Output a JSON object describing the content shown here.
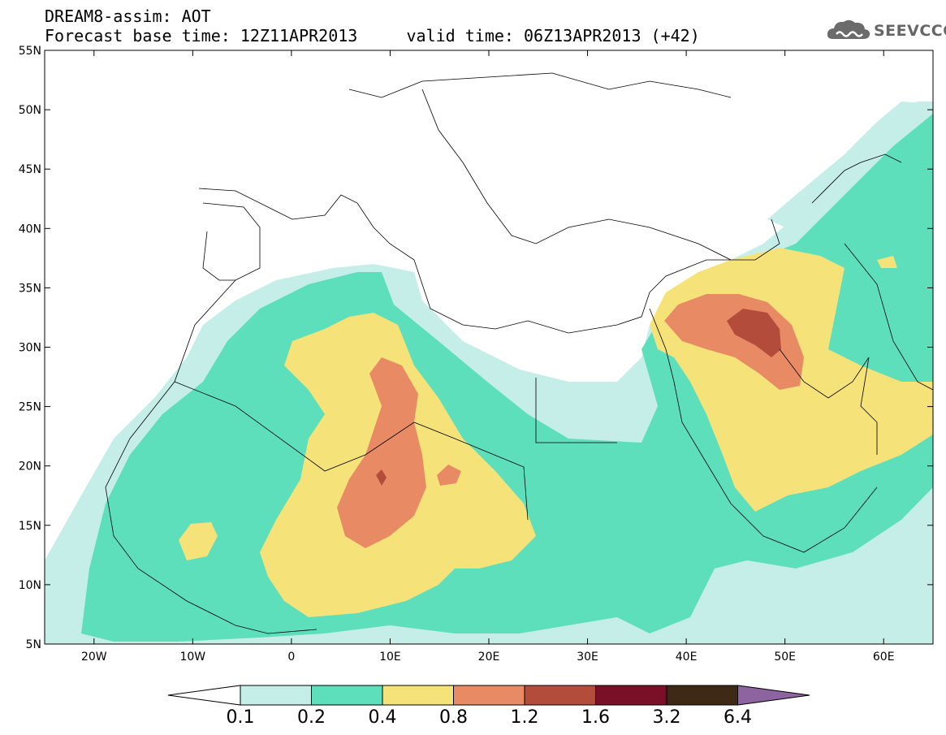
{
  "title_line1": "DREAM8-assim: AOT",
  "title_line2": "Forecast base time: 12Z11APR2013     valid time: 06Z13APR2013 (+42)",
  "logo": {
    "text": "SEEVCCC",
    "icon": "cloud-icon"
  },
  "map": {
    "variable": "AOT",
    "lon_range": [
      -25,
      65
    ],
    "lat_range": [
      5,
      55
    ],
    "lat_ticks": [
      "5N",
      "10N",
      "15N",
      "20N",
      "25N",
      "30N",
      "35N",
      "40N",
      "45N",
      "50N",
      "55N"
    ],
    "lon_ticks": [
      "20W",
      "10W",
      "0",
      "10E",
      "20E",
      "30E",
      "40E",
      "50E",
      "60E"
    ]
  },
  "colorbar": {
    "levels": [
      "0.1",
      "0.2",
      "0.4",
      "0.8",
      "1.2",
      "1.6",
      "3.2",
      "6.4"
    ],
    "colors": [
      "#ffffff",
      "#c6eee8",
      "#5ddfbc",
      "#f5e37a",
      "#e88b64",
      "#b44c3c",
      "#7a1028",
      "#3e2816",
      "#8e64a0"
    ]
  },
  "colors": {
    "c0": "#c6eee8",
    "c1": "#5ddfbc",
    "c2": "#f5e37a",
    "c3": "#e88b64",
    "c4": "#b44c3c",
    "c5": "#7a1028"
  }
}
